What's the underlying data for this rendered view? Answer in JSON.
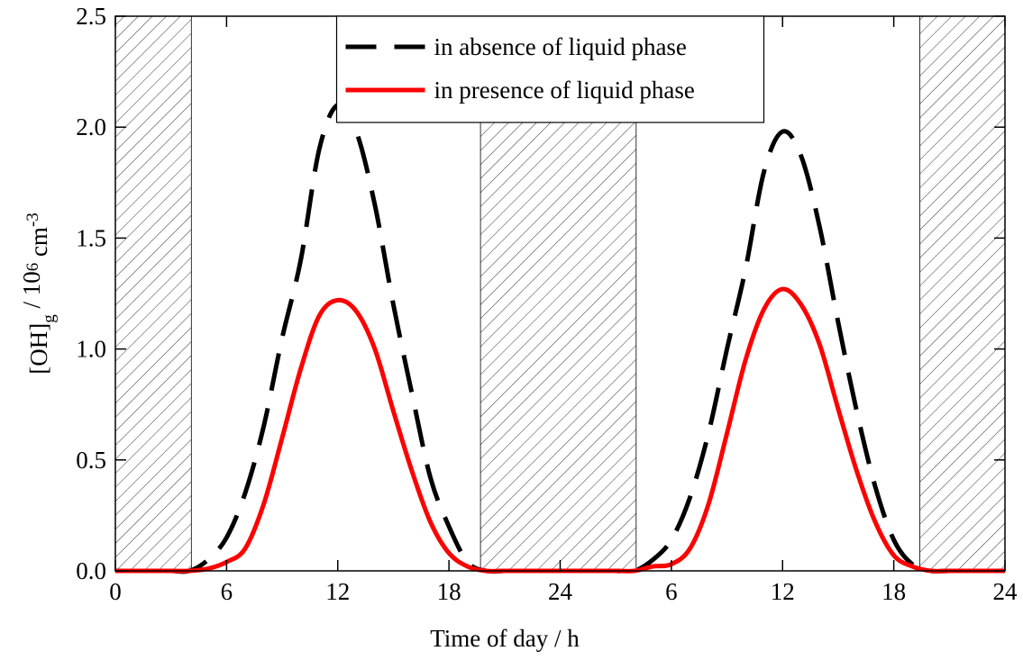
{
  "chart_data": {
    "type": "line",
    "xlabel": "Time of day / h",
    "ylabel_parts": [
      "[OH]",
      "g",
      " / 10",
      "6",
      " cm",
      "-3"
    ],
    "x": [
      0,
      1,
      2,
      3,
      4,
      5,
      6,
      7,
      8,
      9,
      10,
      11,
      12,
      13,
      14,
      15,
      16,
      17,
      18,
      19,
      20,
      21,
      22,
      23,
      24,
      25,
      26,
      27,
      28,
      29,
      30,
      31,
      32,
      33,
      34,
      35,
      36,
      37,
      38,
      39,
      40,
      41,
      42,
      43,
      44,
      45,
      46,
      47,
      48
    ],
    "series": [
      {
        "name": "in absence of liquid phase",
        "color": "#000000",
        "dash": true,
        "values": [
          0,
          0,
          0,
          0,
          0,
          0.05,
          0.15,
          0.35,
          0.65,
          1.05,
          1.4,
          1.9,
          2.1,
          1.98,
          1.65,
          1.2,
          0.8,
          0.42,
          0.2,
          0.04,
          0,
          0,
          0,
          0,
          0,
          0,
          0,
          0,
          0,
          0.05,
          0.14,
          0.33,
          0.62,
          1.0,
          1.36,
          1.8,
          1.98,
          1.87,
          1.55,
          1.12,
          0.72,
          0.38,
          0.14,
          0.03,
          0,
          0,
          0,
          0,
          0
        ]
      },
      {
        "name": "in presence of liquid phase",
        "color": "#ff0000",
        "dash": false,
        "values": [
          0,
          0,
          0,
          0,
          0,
          0.01,
          0.04,
          0.1,
          0.3,
          0.6,
          0.91,
          1.15,
          1.22,
          1.17,
          1.0,
          0.72,
          0.45,
          0.22,
          0.08,
          0.02,
          0,
          0,
          0,
          0,
          0,
          0,
          0,
          0,
          0,
          0.02,
          0.03,
          0.1,
          0.3,
          0.62,
          0.95,
          1.18,
          1.27,
          1.2,
          1.02,
          0.73,
          0.45,
          0.22,
          0.07,
          0.02,
          0,
          0,
          0,
          0,
          0
        ]
      }
    ],
    "night_periods": [
      [
        0,
        4.1
      ],
      [
        19.7,
        28.1
      ],
      [
        43.4,
        48
      ]
    ],
    "xlim": [
      0,
      48
    ],
    "xticks": [
      0,
      6,
      12,
      18,
      24,
      {
        "value": 30,
        "label": "6"
      },
      {
        "value": 36,
        "label": "12"
      },
      {
        "value": 42,
        "label": "18"
      },
      {
        "value": 48,
        "label": "24"
      }
    ],
    "ylim": [
      0,
      2.5
    ],
    "yticks": [
      {
        "value": 0,
        "label": "0.0"
      },
      0.5,
      {
        "value": 1,
        "label": "1.0"
      },
      1.5,
      {
        "value": 2,
        "label": "2.0"
      },
      2.5
    ],
    "legend": "upper center"
  }
}
